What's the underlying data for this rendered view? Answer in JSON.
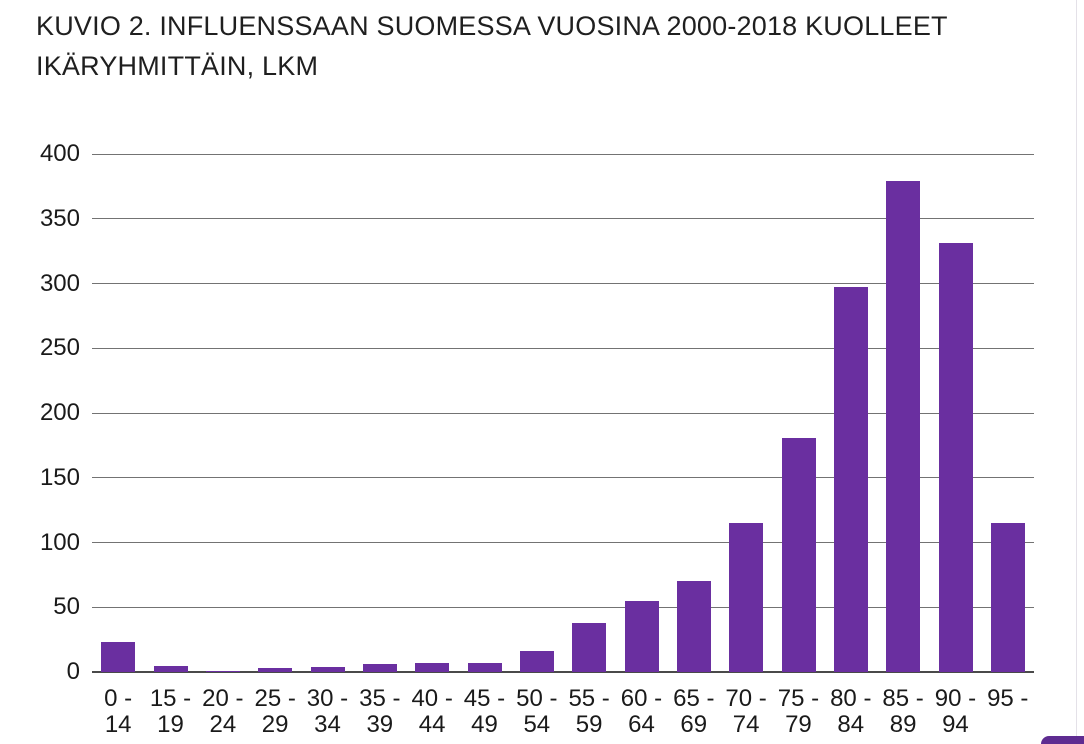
{
  "header": {
    "title_line1": "KUVIO 2. INFLUENSSAAN SUOMESSA VUOSINA 2000-2018 KUOLLEET",
    "title_line2": "IKÄRYHMITTÄIN, LKM"
  },
  "chart_data": {
    "type": "bar",
    "title": "KUVIO 2. INFLUENSSAAN SUOMESSA VUOSINA 2000-2018 KUOLLEET IKÄRYHMITTÄIN, LKM",
    "categories": [
      "0 - 14",
      "15 - 19",
      "20 - 24",
      "25 - 29",
      "30 - 34",
      "35 - 39",
      "40 - 44",
      "45 - 49",
      "50 - 54",
      "55 - 59",
      "60 - 64",
      "65 - 69",
      "70 - 74",
      "75 - 79",
      "80 - 84",
      "85 - 89",
      "90 - 94",
      "95 -"
    ],
    "x_tick_labels": [
      [
        "0 -",
        "14"
      ],
      [
        "15 -",
        "19"
      ],
      [
        "20 -",
        "24"
      ],
      [
        "25 -",
        "29"
      ],
      [
        "30 -",
        "34"
      ],
      [
        "35 -",
        "39"
      ],
      [
        "40 -",
        "44"
      ],
      [
        "45 -",
        "49"
      ],
      [
        "50 -",
        "54"
      ],
      [
        "55 -",
        "59"
      ],
      [
        "60 -",
        "64"
      ],
      [
        "65 -",
        "69"
      ],
      [
        "70 -",
        "74"
      ],
      [
        "75 -",
        "79"
      ],
      [
        "80 -",
        "84"
      ],
      [
        "85 -",
        "89"
      ],
      [
        "90 -",
        "94"
      ],
      [
        "95 -",
        ""
      ]
    ],
    "values": [
      23,
      5,
      1,
      3,
      4,
      6,
      7,
      7,
      16,
      38,
      55,
      70,
      115,
      181,
      297,
      379,
      331,
      115
    ],
    "xlabel": "",
    "ylabel": "",
    "ylim": [
      0,
      400
    ],
    "yticks": [
      0,
      50,
      100,
      150,
      200,
      250,
      300,
      350,
      400
    ],
    "grid": true,
    "legend": false,
    "bar_color": "#6a2fa0"
  },
  "colors": {
    "bar": "#6a2fa0",
    "grid": "#737373",
    "baseline": "#4a4a4a",
    "text": "#1a1a1a",
    "fab": "#5e2c91",
    "page_edge": "#e4e1e8"
  },
  "fab_button": {
    "visible": true
  }
}
